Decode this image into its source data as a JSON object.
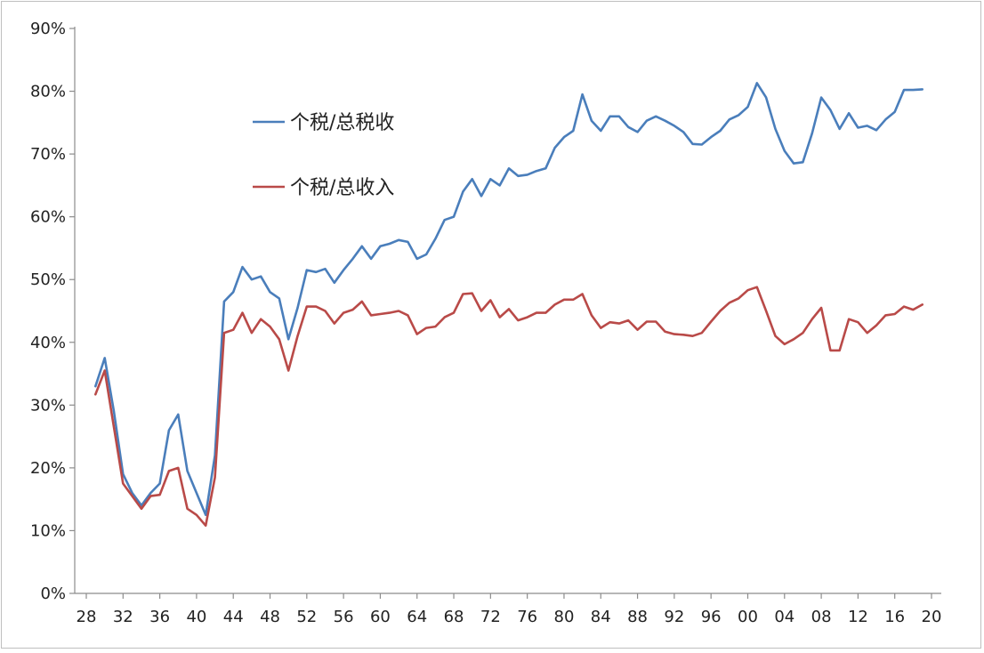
{
  "chart_data": {
    "type": "line",
    "title": "",
    "xlabel": "",
    "ylabel": "",
    "ylim": [
      0,
      0.9
    ],
    "y_ticks": [
      0,
      0.1,
      0.2,
      0.3,
      0.4,
      0.5,
      0.6,
      0.7,
      0.8,
      0.9
    ],
    "y_tick_labels": [
      "0%",
      "10%",
      "20%",
      "30%",
      "40%",
      "50%",
      "60%",
      "70%",
      "80%",
      "90%"
    ],
    "x_tick_labels": [
      "28",
      "32",
      "36",
      "40",
      "44",
      "48",
      "52",
      "56",
      "60",
      "64",
      "68",
      "72",
      "76",
      "80",
      "84",
      "88",
      "92",
      "96",
      "00",
      "04",
      "08",
      "12",
      "16",
      "20"
    ],
    "grid": false,
    "legend_position": "upper-left-inside",
    "x": [
      1929,
      1930,
      1931,
      1932,
      1933,
      1934,
      1935,
      1936,
      1937,
      1938,
      1939,
      1940,
      1941,
      1942,
      1943,
      1944,
      1945,
      1946,
      1947,
      1948,
      1949,
      1950,
      1951,
      1952,
      1953,
      1954,
      1955,
      1956,
      1957,
      1958,
      1959,
      1960,
      1961,
      1962,
      1963,
      1964,
      1965,
      1966,
      1967,
      1968,
      1969,
      1970,
      1971,
      1972,
      1973,
      1974,
      1975,
      1976,
      1977,
      1978,
      1979,
      1980,
      1981,
      1982,
      1983,
      1984,
      1985,
      1986,
      1987,
      1988,
      1989,
      1990,
      1991,
      1992,
      1993,
      1994,
      1995,
      1996,
      1997,
      1998,
      1999,
      2000,
      2001,
      2002,
      2003,
      2004,
      2005,
      2006,
      2007,
      2008,
      2009,
      2010,
      2011,
      2012,
      2013,
      2014,
      2015,
      2016,
      2017,
      2018,
      2019
    ],
    "series": [
      {
        "name": "个税/总税收",
        "color": "#4a7ebb",
        "values": [
          0.33,
          0.375,
          0.29,
          0.19,
          0.16,
          0.14,
          0.16,
          0.175,
          0.26,
          0.285,
          0.195,
          0.16,
          0.125,
          0.22,
          0.465,
          0.48,
          0.52,
          0.5,
          0.505,
          0.48,
          0.47,
          0.405,
          0.455,
          0.515,
          0.512,
          0.517,
          0.495,
          0.515,
          0.533,
          0.553,
          0.533,
          0.553,
          0.557,
          0.563,
          0.56,
          0.533,
          0.54,
          0.565,
          0.595,
          0.6,
          0.64,
          0.66,
          0.633,
          0.66,
          0.65,
          0.677,
          0.665,
          0.667,
          0.673,
          0.677,
          0.71,
          0.727,
          0.737,
          0.795,
          0.753,
          0.737,
          0.76,
          0.76,
          0.743,
          0.735,
          0.753,
          0.76,
          0.753,
          0.745,
          0.735,
          0.716,
          0.715,
          0.727,
          0.737,
          0.755,
          0.762,
          0.775,
          0.813,
          0.79,
          0.74,
          0.705,
          0.685,
          0.687,
          0.733,
          0.79,
          0.77,
          0.74,
          0.765,
          0.742,
          0.745,
          0.738,
          0.755,
          0.767,
          0.802,
          0.802,
          0.803
        ]
      },
      {
        "name": "个税/总收入",
        "color": "#b94a48",
        "values": [
          0.317,
          0.355,
          0.265,
          0.175,
          0.155,
          0.135,
          0.155,
          0.157,
          0.195,
          0.2,
          0.135,
          0.125,
          0.108,
          0.185,
          0.415,
          0.42,
          0.447,
          0.415,
          0.437,
          0.425,
          0.405,
          0.355,
          0.41,
          0.457,
          0.457,
          0.45,
          0.43,
          0.447,
          0.452,
          0.465,
          0.443,
          0.445,
          0.447,
          0.45,
          0.443,
          0.413,
          0.423,
          0.425,
          0.44,
          0.447,
          0.477,
          0.478,
          0.45,
          0.467,
          0.44,
          0.453,
          0.435,
          0.44,
          0.447,
          0.447,
          0.46,
          0.468,
          0.468,
          0.477,
          0.443,
          0.423,
          0.432,
          0.43,
          0.435,
          0.42,
          0.433,
          0.433,
          0.417,
          0.413,
          0.412,
          0.41,
          0.415,
          0.433,
          0.45,
          0.463,
          0.47,
          0.483,
          0.488,
          0.45,
          0.41,
          0.397,
          0.405,
          0.415,
          0.437,
          0.455,
          0.387,
          0.387,
          0.437,
          0.432,
          0.415,
          0.427,
          0.443,
          0.445,
          0.457,
          0.452,
          0.46
        ]
      }
    ]
  }
}
